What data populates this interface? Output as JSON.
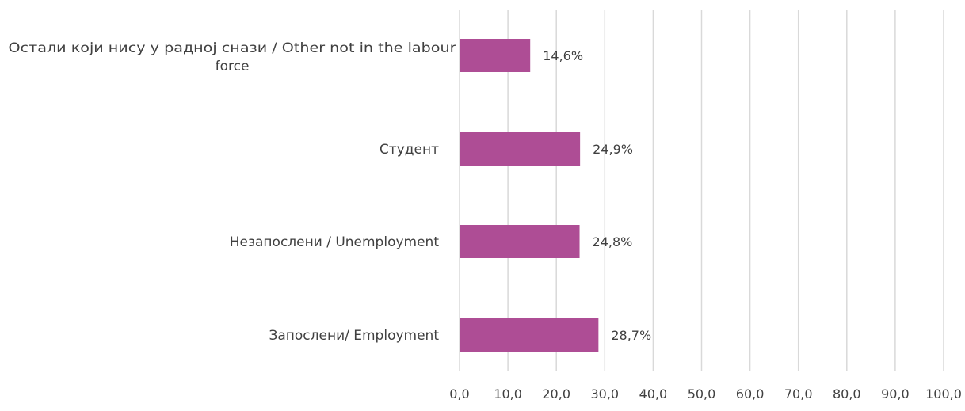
{
  "chart_data": {
    "type": "bar",
    "orientation": "horizontal",
    "categories": [
      "Остали који нису у радној снази / Other not in the labour force",
      "Студент",
      "Незапослени / Unemployment",
      "Запослени/ Employment"
    ],
    "category_label_lines": [
      [
        "Остали који нису у радној снази  / Other not in the labour",
        "force"
      ],
      [
        "Студент"
      ],
      [
        "Незапослени / Unemployment"
      ],
      [
        "Запослени/ Employment"
      ]
    ],
    "values": [
      14.6,
      24.9,
      24.8,
      28.7
    ],
    "data_labels": [
      "14,6%",
      "24,9%",
      "24,8%",
      "28,7%"
    ],
    "x_ticks": [
      0,
      10,
      20,
      30,
      40,
      50,
      60,
      70,
      80,
      90,
      100
    ],
    "x_tick_labels": [
      "0,0",
      "10,0",
      "20,0",
      "30,0",
      "40,0",
      "50,0",
      "60,0",
      "70,0",
      "80,0",
      "90,0",
      "100,0"
    ],
    "xlim": [
      0,
      100
    ],
    "title": "",
    "xlabel": "",
    "ylabel": "",
    "grid": "vertical",
    "legend": "none",
    "bar_color": "#ae4d95",
    "grid_color": "#d9d9d9",
    "text_color": "#404040"
  }
}
